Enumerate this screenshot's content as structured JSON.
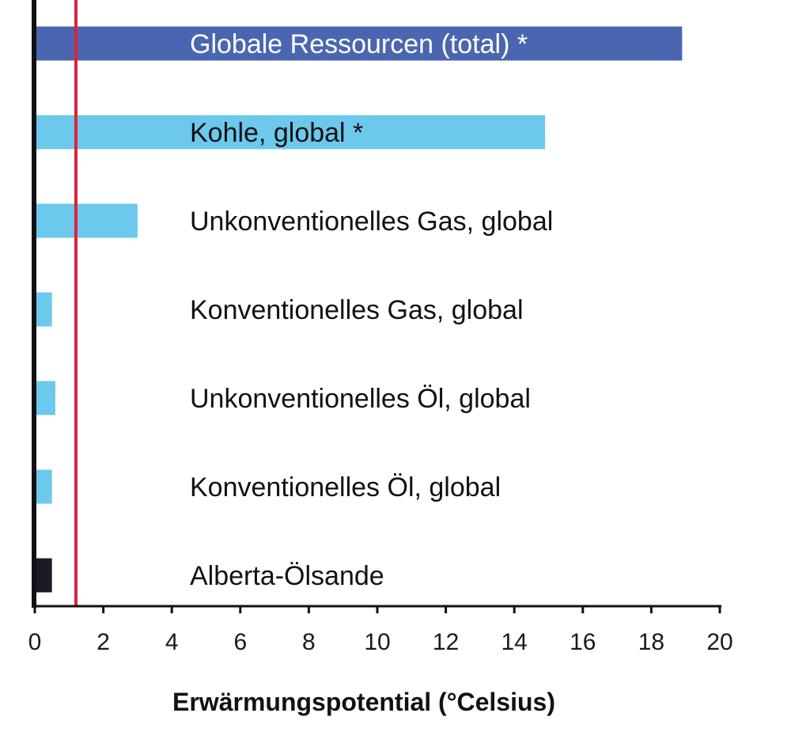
{
  "chart_data": {
    "type": "bar",
    "orientation": "horizontal",
    "categories": [
      "Globale Ressourcen (total) *",
      "Kohle, global *",
      "Unkonventionelles Gas, global",
      "Konventionelles Gas, global",
      "Unkonventionelles Öl, global",
      "Konventionelles Öl, global",
      "Alberta-Ölsande"
    ],
    "values": [
      18.9,
      14.9,
      3.0,
      0.5,
      0.6,
      0.5,
      0.5
    ],
    "bar_colors": [
      "#4a66b0",
      "#6cc8ec",
      "#6cc8ec",
      "#6cc8ec",
      "#6cc8ec",
      "#6cc8ec",
      "#1a1a22"
    ],
    "label_colors": [
      "#ffffff",
      "#111111",
      "#111111",
      "#111111",
      "#111111",
      "#111111",
      "#111111"
    ],
    "xlabel": "Erwärmungspotential (°Celsius)",
    "xlim": [
      0,
      20
    ],
    "xticks": [
      0,
      2,
      4,
      6,
      8,
      10,
      12,
      14,
      16,
      18,
      20
    ],
    "reference_line": {
      "value": 1.2,
      "color": "#d9223c"
    },
    "axis_color": "#111111",
    "grid": false,
    "legend": "none"
  }
}
